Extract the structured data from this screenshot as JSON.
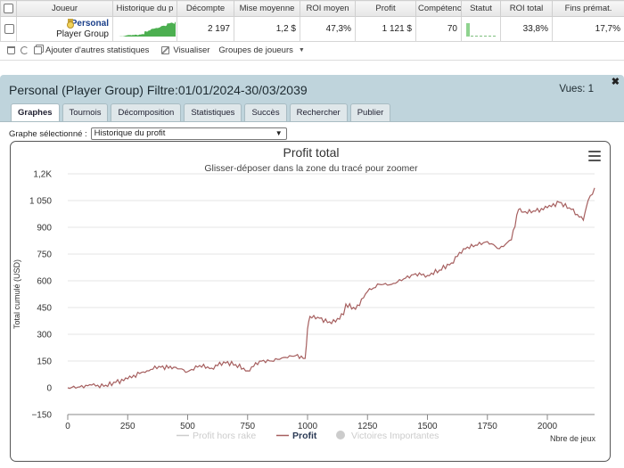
{
  "table": {
    "headers": [
      "Joueur",
      "Historique du p",
      "Décompte",
      "Mise moyenne",
      "ROI moyen",
      "Profit",
      "Compétences",
      "Statut",
      "ROI total",
      "Fins prémat."
    ],
    "row": {
      "player_name": "Personal",
      "player_group": "Player Group",
      "count": "2 197",
      "avg_stake": "1,2 $",
      "avg_roi": "47,3%",
      "profit": "1 121 $",
      "skill": "70",
      "roi_total": "33,8%",
      "early_finish": "17,7%"
    }
  },
  "toolbar": {
    "add_stats": "Ajouter d'autres statistiques",
    "visualize": "Visualiser",
    "player_groups": "Groupes de joueurs"
  },
  "panel": {
    "title": "Personal (Player Group) Filtre:01/01/2024-30/03/2039",
    "views": "Vues: 1",
    "tabs": [
      "Graphes",
      "Tournois",
      "Décomposition",
      "Statistiques",
      "Succès",
      "Rechercher",
      "Publier"
    ],
    "active_tab": "Graphes",
    "graph_select_label": "Graphe sélectionné :",
    "graph_select_value": "Historique du profit"
  },
  "colors": {
    "profit_line": "#a65f5f",
    "rake_line": "#cccccc",
    "legend_active": "#2b3a55",
    "legend_inactive": "#cccccc",
    "header_bg": "#e6e6e6",
    "panel_bg": "#bfd4dc",
    "sparkline": "#4caf50"
  },
  "chart_data": {
    "type": "line",
    "title": "Profit total",
    "subtitle": "Glisser-déposer dans la zone du tracé pour zoomer",
    "xlabel": "Nbre de jeux",
    "ylabel": "Total cumulé (USD)",
    "xlim": [
      0,
      2197
    ],
    "ylim": [
      -150,
      1200
    ],
    "x_ticks": [
      0,
      250,
      500,
      750,
      1000,
      1250,
      1500,
      1750,
      2000
    ],
    "y_ticks": [
      -150,
      0,
      150,
      300,
      450,
      600,
      750,
      900,
      1050,
      1200
    ],
    "y_tick_labels": [
      "−150",
      "0",
      "150",
      "300",
      "450",
      "600",
      "750",
      "900",
      "1 050",
      "1,2K"
    ],
    "legend": [
      "Profit hors rake",
      "Profit",
      "Victoires Importantes"
    ],
    "legend_position": "bottom",
    "series": [
      {
        "name": "Profit",
        "x": [
          0,
          50,
          100,
          150,
          200,
          250,
          300,
          330,
          380,
          420,
          450,
          500,
          550,
          600,
          650,
          700,
          750,
          800,
          850,
          900,
          950,
          990,
          1000,
          1010,
          1050,
          1100,
          1150,
          1160,
          1200,
          1250,
          1300,
          1350,
          1400,
          1450,
          1500,
          1550,
          1600,
          1650,
          1700,
          1750,
          1800,
          1850,
          1880,
          1900,
          1950,
          2000,
          2050,
          2100,
          2150,
          2170,
          2197
        ],
        "y": [
          0,
          5,
          15,
          8,
          30,
          50,
          80,
          95,
          120,
          110,
          115,
          90,
          125,
          110,
          145,
          130,
          95,
          150,
          150,
          170,
          180,
          165,
          330,
          400,
          390,
          360,
          410,
          470,
          440,
          540,
          580,
          580,
          610,
          640,
          630,
          660,
          700,
          780,
          800,
          820,
          780,
          830,
          1000,
          985,
          990,
          1010,
          1040,
          1000,
          940,
          1050,
          1121
        ]
      }
    ]
  }
}
